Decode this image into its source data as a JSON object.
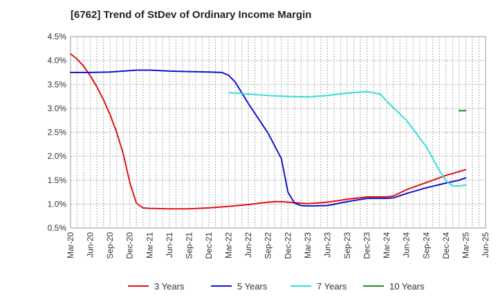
{
  "chart_data": {
    "type": "line",
    "title": "[6762]  Trend of StDev of Ordinary Income Margin",
    "xlabel": "",
    "ylabel": "",
    "ylim": [
      0.5,
      4.5
    ],
    "y_ticks": [
      "0.5%",
      "1.0%",
      "1.5%",
      "2.0%",
      "2.5%",
      "3.0%",
      "3.5%",
      "4.0%",
      "4.5%"
    ],
    "x_ticks": [
      "Mar-20",
      "Jun-20",
      "Sep-20",
      "Dec-20",
      "Mar-21",
      "Jun-21",
      "Sep-21",
      "Dec-21",
      "Mar-22",
      "Jun-22",
      "Sep-22",
      "Dec-22",
      "Mar-23",
      "Jun-23",
      "Sep-23",
      "Dec-23",
      "Mar-24",
      "Jun-24",
      "Sep-24",
      "Dec-24",
      "Mar-25",
      "Jun-25"
    ],
    "grid": true,
    "legend_position": "bottom",
    "series": [
      {
        "name": "3 Years",
        "color": "#dd1111",
        "x": [
          "Mar-20",
          "Apr-20",
          "May-20",
          "Jun-20",
          "Jul-20",
          "Aug-20",
          "Sep-20",
          "Oct-20",
          "Nov-20",
          "Dec-20",
          "Jan-21",
          "Feb-21",
          "Mar-21",
          "Jun-21",
          "Sep-21",
          "Dec-21",
          "Mar-22",
          "Jun-22",
          "Sep-22",
          "Oct-22",
          "Nov-22",
          "Dec-22",
          "Mar-23",
          "Jun-23",
          "Sep-23",
          "Dec-23",
          "Mar-24",
          "Apr-24",
          "Jun-24",
          "Sep-24",
          "Dec-24",
          "Feb-25",
          "Mar-25"
        ],
        "values": [
          4.14,
          4.03,
          3.88,
          3.68,
          3.45,
          3.18,
          2.87,
          2.5,
          2.05,
          1.45,
          1.02,
          0.92,
          0.91,
          0.9,
          0.9,
          0.92,
          0.95,
          0.99,
          1.04,
          1.05,
          1.05,
          1.04,
          1.01,
          1.04,
          1.1,
          1.15,
          1.15,
          1.17,
          1.3,
          1.45,
          1.6,
          1.68,
          1.72
        ]
      },
      {
        "name": "5 Years",
        "color": "#1111cc",
        "x": [
          "Mar-20",
          "Jun-20",
          "Sep-20",
          "Dec-20",
          "Jan-21",
          "Mar-21",
          "Jun-21",
          "Sep-21",
          "Dec-21",
          "Feb-22",
          "Mar-22",
          "Apr-22",
          "Jun-22",
          "Sep-22",
          "Nov-22",
          "Dec-22",
          "Jan-23",
          "Feb-23",
          "Mar-23",
          "Jun-23",
          "Sep-23",
          "Dec-23",
          "Mar-24",
          "Apr-24",
          "Jun-24",
          "Sep-24",
          "Dec-24",
          "Feb-25",
          "Mar-25"
        ],
        "values": [
          3.75,
          3.75,
          3.76,
          3.79,
          3.8,
          3.8,
          3.78,
          3.77,
          3.76,
          3.75,
          3.69,
          3.55,
          3.1,
          2.48,
          1.95,
          1.25,
          1.02,
          0.97,
          0.96,
          0.97,
          1.05,
          1.12,
          1.12,
          1.13,
          1.22,
          1.34,
          1.44,
          1.5,
          1.55
        ]
      },
      {
        "name": "7 Years",
        "color": "#33dddd",
        "x": [
          "Mar-22",
          "Jun-22",
          "Sep-22",
          "Dec-22",
          "Mar-23",
          "Jun-23",
          "Sep-23",
          "Dec-23",
          "Feb-24",
          "Mar-24",
          "Jun-24",
          "Sep-24",
          "Oct-24",
          "Nov-24",
          "Dec-24",
          "Jan-25",
          "Feb-25",
          "Mar-25"
        ],
        "values": [
          3.33,
          3.3,
          3.27,
          3.25,
          3.24,
          3.27,
          3.32,
          3.35,
          3.3,
          3.15,
          2.75,
          2.2,
          1.95,
          1.7,
          1.48,
          1.38,
          1.38,
          1.4
        ]
      },
      {
        "name": "10 Years",
        "color": "#228822",
        "x": [
          "Feb-25",
          "Mar-25"
        ],
        "values": [
          2.95,
          2.95
        ]
      }
    ]
  }
}
